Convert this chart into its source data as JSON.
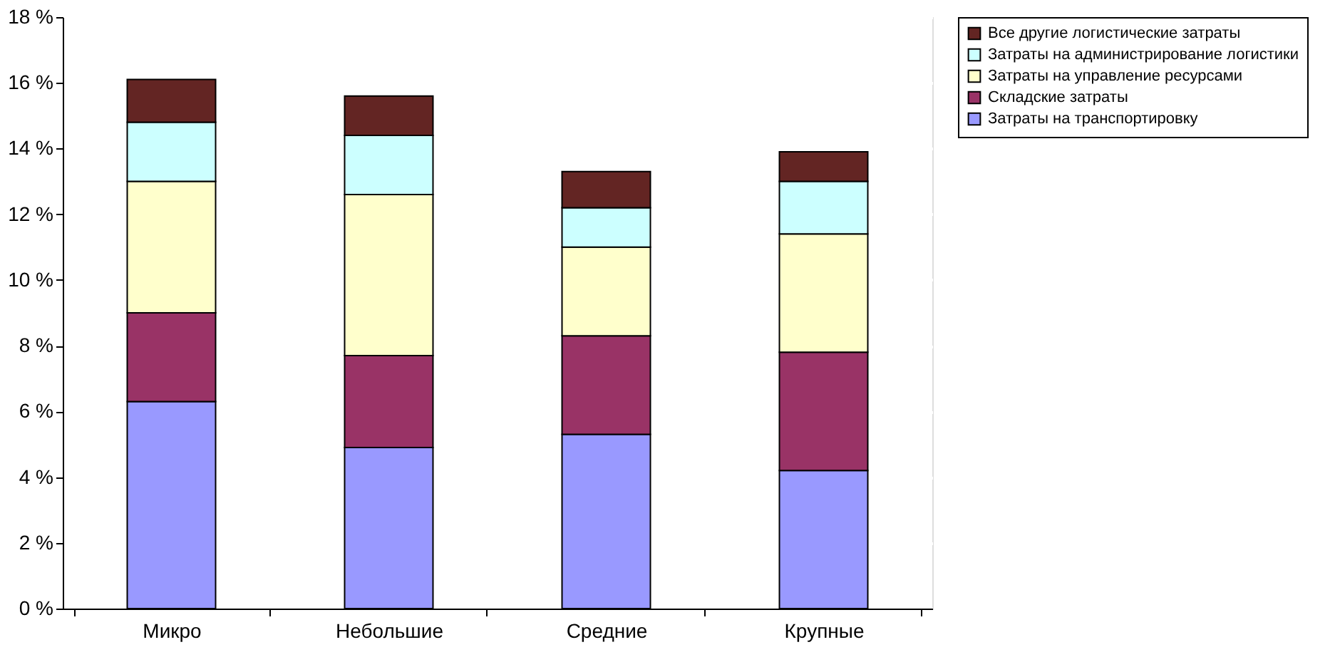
{
  "chart_data": {
    "type": "bar",
    "stacked": true,
    "categories": [
      "Микро",
      "Небольшие",
      "Средние",
      "Крупные"
    ],
    "series": [
      {
        "name": "Затраты на транспортировку",
        "color": "#9999ff",
        "values": [
          6.3,
          4.9,
          5.3,
          4.2
        ]
      },
      {
        "name": "Складские затраты",
        "color": "#993366",
        "values": [
          2.7,
          2.8,
          3.0,
          3.6
        ]
      },
      {
        "name": "Затраты на  управление ресурсами",
        "color": "#ffffcc",
        "values": [
          4.0,
          4.9,
          2.7,
          3.6
        ]
      },
      {
        "name": "Затраты на администрирование логистики",
        "color": "#ccffff",
        "values": [
          1.8,
          1.8,
          1.2,
          1.6
        ]
      },
      {
        "name": "Все другие логистические затраты",
        "color": "#632523",
        "values": [
          1.3,
          1.2,
          1.1,
          0.9
        ]
      }
    ],
    "ylim": [
      0,
      18
    ],
    "yticks": [
      {
        "value": 0,
        "label": "0 %"
      },
      {
        "value": 2,
        "label": "2 %"
      },
      {
        "value": 4,
        "label": "4 %"
      },
      {
        "value": 6,
        "label": "6 %"
      },
      {
        "value": 8,
        "label": "8 %"
      },
      {
        "value": 10,
        "label": "10 %"
      },
      {
        "value": 12,
        "label": "12 %"
      },
      {
        "value": 14,
        "label": "14 %"
      },
      {
        "value": 16,
        "label": "16 %"
      },
      {
        "value": 18,
        "label": "18 %"
      }
    ],
    "grid": "y",
    "legend": "right"
  }
}
